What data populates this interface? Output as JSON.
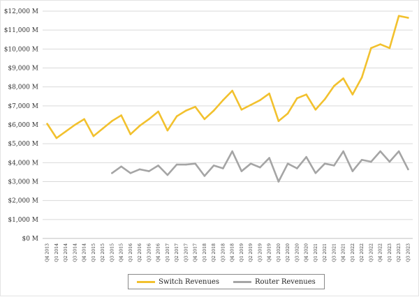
{
  "chart_data": {
    "type": "line",
    "title": "",
    "xlabel": "",
    "ylabel": "",
    "ylim": [
      0,
      12000
    ],
    "yticks": [
      "$0 M",
      "$1,000 M",
      "$2,000 M",
      "$3,000 M",
      "$4,000 M",
      "$5,000 M",
      "$6,000 M",
      "$7,000 M",
      "$8,000 M",
      "$9,000 M",
      "$10,000 M",
      "$11,000 M",
      "$12,000 M"
    ],
    "grid": "horizontal",
    "legend_position": "bottom",
    "categories": [
      "Q4 2013",
      "Q1 2014",
      "Q2 2014",
      "Q3 2014",
      "Q4 2014",
      "Q1 2015",
      "Q2 2015",
      "Q3 2015",
      "Q4 2015",
      "Q1 2016",
      "Q2 2016",
      "Q3 2016",
      "Q4 2016",
      "Q1 2017",
      "Q2 2017",
      "Q3 2017",
      "Q4 2017",
      "Q1 2018",
      "Q2 2018",
      "Q3 2018",
      "Q4 2018",
      "Q1 2019",
      "Q2 2019",
      "Q3 2019",
      "Q4 2019",
      "Q1 2020",
      "Q2 2020",
      "Q3 2020",
      "Q4 2020",
      "Q1 2021",
      "Q2 2021",
      "Q3 2021",
      "Q4 2021",
      "Q1 2022",
      "Q2 2022",
      "Q3 2022",
      "Q4 2022",
      "Q1 2023",
      "Q2 2023",
      "Q3 2023"
    ],
    "series": [
      {
        "name": "Switch Revenues",
        "color": "#f2c12e",
        "values": [
          6050,
          5300,
          5650,
          6000,
          6300,
          5400,
          5800,
          6200,
          6500,
          5500,
          5950,
          6300,
          6700,
          5700,
          6450,
          6750,
          6950,
          6300,
          6750,
          7300,
          7800,
          6800,
          7050,
          7300,
          7650,
          6200,
          6600,
          7400,
          7600,
          6800,
          7350,
          8050,
          8450,
          7600,
          8500,
          10050,
          10250,
          10050,
          11750,
          11650
        ]
      },
      {
        "name": "Router Revenues",
        "color": "#a5a5a5",
        "values": [
          null,
          null,
          null,
          null,
          null,
          null,
          null,
          3450,
          3800,
          3450,
          3650,
          3550,
          3850,
          3350,
          3900,
          3900,
          3950,
          3300,
          3850,
          3700,
          4600,
          3550,
          3950,
          3750,
          4250,
          3000,
          3950,
          3700,
          4300,
          3450,
          3950,
          3850,
          4600,
          3550,
          4150,
          4050,
          4600,
          4050,
          4600,
          3650
        ]
      }
    ]
  }
}
